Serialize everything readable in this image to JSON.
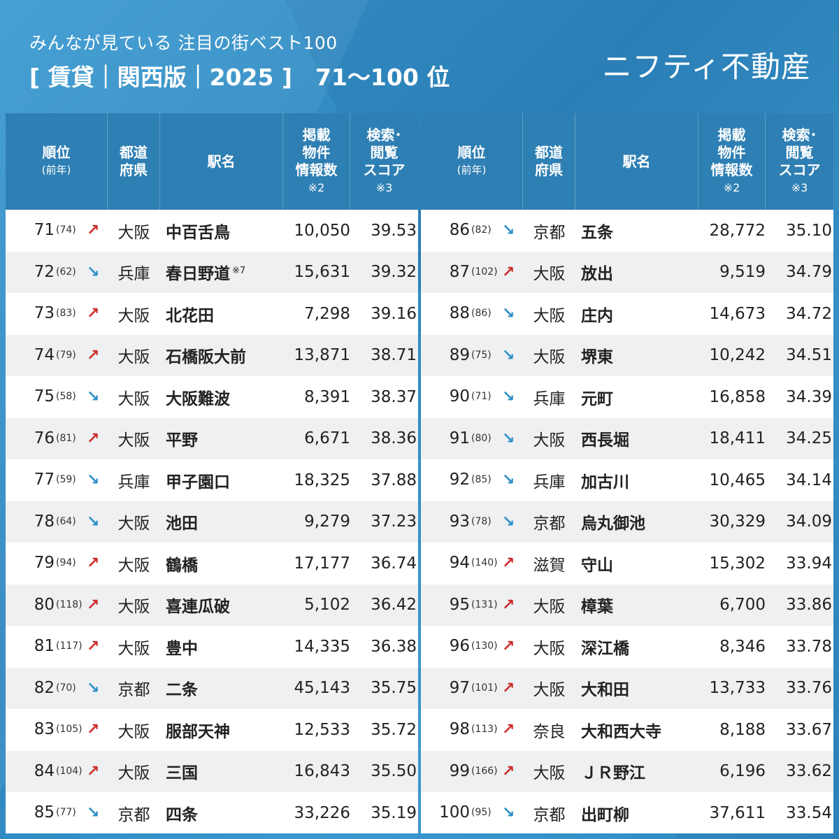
{
  "header": {
    "subtitle": "みんなが見ている 注目の街ベスト100",
    "title": "[ 賃貸｜関西版｜2025 ]　71〜100 位",
    "brand": "ニフティ不動産"
  },
  "columns": {
    "rank": "順位",
    "rank_prev": "(前年)",
    "pref_1": "都道",
    "pref_2": "府県",
    "name": "駅名",
    "count_1": "掲載",
    "count_2": "物件",
    "count_3": "情報数",
    "count_note": "※2",
    "score_1": "検索･",
    "score_2": "閲覧",
    "score_3": "スコア",
    "score_note": "※3"
  },
  "arrows": {
    "up": "↗",
    "down": "↘"
  },
  "colors": {
    "up": "#cc2b2b",
    "down": "#2a8fc7",
    "header": "#2e7fb3"
  },
  "left_rows": [
    {
      "rank": "71",
      "prev": "(74)",
      "trend": "up",
      "pref": "大阪",
      "name": "中百舌鳥",
      "note": "",
      "count": "10,050",
      "score": "39.53"
    },
    {
      "rank": "72",
      "prev": "(62)",
      "trend": "down",
      "pref": "兵庫",
      "name": "春日野道",
      "note": "※7",
      "count": "15,631",
      "score": "39.32"
    },
    {
      "rank": "73",
      "prev": "(83)",
      "trend": "up",
      "pref": "大阪",
      "name": "北花田",
      "note": "",
      "count": "7,298",
      "score": "39.16"
    },
    {
      "rank": "74",
      "prev": "(79)",
      "trend": "up",
      "pref": "大阪",
      "name": "石橋阪大前",
      "note": "",
      "count": "13,871",
      "score": "38.71"
    },
    {
      "rank": "75",
      "prev": "(58)",
      "trend": "down",
      "pref": "大阪",
      "name": "大阪難波",
      "note": "",
      "count": "8,391",
      "score": "38.37"
    },
    {
      "rank": "76",
      "prev": "(81)",
      "trend": "up",
      "pref": "大阪",
      "name": "平野",
      "note": "",
      "count": "6,671",
      "score": "38.36"
    },
    {
      "rank": "77",
      "prev": "(59)",
      "trend": "down",
      "pref": "兵庫",
      "name": "甲子園口",
      "note": "",
      "count": "18,325",
      "score": "37.88"
    },
    {
      "rank": "78",
      "prev": "(64)",
      "trend": "down",
      "pref": "大阪",
      "name": "池田",
      "note": "",
      "count": "9,279",
      "score": "37.23"
    },
    {
      "rank": "79",
      "prev": "(94)",
      "trend": "up",
      "pref": "大阪",
      "name": "鶴橋",
      "note": "",
      "count": "17,177",
      "score": "36.74"
    },
    {
      "rank": "80",
      "prev": "(118)",
      "trend": "up",
      "pref": "大阪",
      "name": "喜連瓜破",
      "note": "",
      "count": "5,102",
      "score": "36.42"
    },
    {
      "rank": "81",
      "prev": "(117)",
      "trend": "up",
      "pref": "大阪",
      "name": "豊中",
      "note": "",
      "count": "14,335",
      "score": "36.38"
    },
    {
      "rank": "82",
      "prev": "(70)",
      "trend": "down",
      "pref": "京都",
      "name": "二条",
      "note": "",
      "count": "45,143",
      "score": "35.75"
    },
    {
      "rank": "83",
      "prev": "(105)",
      "trend": "up",
      "pref": "大阪",
      "name": "服部天神",
      "note": "",
      "count": "12,533",
      "score": "35.72"
    },
    {
      "rank": "84",
      "prev": "(104)",
      "trend": "up",
      "pref": "大阪",
      "name": "三国",
      "note": "",
      "count": "16,843",
      "score": "35.50"
    },
    {
      "rank": "85",
      "prev": "(77)",
      "trend": "down",
      "pref": "京都",
      "name": "四条",
      "note": "",
      "count": "33,226",
      "score": "35.19"
    }
  ],
  "right_rows": [
    {
      "rank": "86",
      "prev": "(82)",
      "trend": "down",
      "pref": "京都",
      "name": "五条",
      "note": "",
      "count": "28,772",
      "score": "35.10"
    },
    {
      "rank": "87",
      "prev": "(102)",
      "trend": "up",
      "pref": "大阪",
      "name": "放出",
      "note": "",
      "count": "9,519",
      "score": "34.79"
    },
    {
      "rank": "88",
      "prev": "(86)",
      "trend": "down",
      "pref": "大阪",
      "name": "庄内",
      "note": "",
      "count": "14,673",
      "score": "34.72"
    },
    {
      "rank": "89",
      "prev": "(75)",
      "trend": "down",
      "pref": "大阪",
      "name": "堺東",
      "note": "",
      "count": "10,242",
      "score": "34.51"
    },
    {
      "rank": "90",
      "prev": "(71)",
      "trend": "down",
      "pref": "兵庫",
      "name": "元町",
      "note": "",
      "count": "16,858",
      "score": "34.39"
    },
    {
      "rank": "91",
      "prev": "(80)",
      "trend": "down",
      "pref": "大阪",
      "name": "西長堀",
      "note": "",
      "count": "18,411",
      "score": "34.25"
    },
    {
      "rank": "92",
      "prev": "(85)",
      "trend": "down",
      "pref": "兵庫",
      "name": "加古川",
      "note": "",
      "count": "10,465",
      "score": "34.14"
    },
    {
      "rank": "93",
      "prev": "(78)",
      "trend": "down",
      "pref": "京都",
      "name": "烏丸御池",
      "note": "",
      "count": "30,329",
      "score": "34.09"
    },
    {
      "rank": "94",
      "prev": "(140)",
      "trend": "up",
      "pref": "滋賀",
      "name": "守山",
      "note": "",
      "count": "15,302",
      "score": "33.94"
    },
    {
      "rank": "95",
      "prev": "(131)",
      "trend": "up",
      "pref": "大阪",
      "name": "樟葉",
      "note": "",
      "count": "6,700",
      "score": "33.86"
    },
    {
      "rank": "96",
      "prev": "(130)",
      "trend": "up",
      "pref": "大阪",
      "name": "深江橋",
      "note": "",
      "count": "8,346",
      "score": "33.78"
    },
    {
      "rank": "97",
      "prev": "(101)",
      "trend": "up",
      "pref": "大阪",
      "name": "大和田",
      "note": "",
      "count": "13,733",
      "score": "33.76"
    },
    {
      "rank": "98",
      "prev": "(113)",
      "trend": "up",
      "pref": "奈良",
      "name": "大和西大寺",
      "note": "",
      "count": "8,188",
      "score": "33.67"
    },
    {
      "rank": "99",
      "prev": "(166)",
      "trend": "up",
      "pref": "大阪",
      "name": "ＪＲ野江",
      "note": "",
      "count": "6,196",
      "score": "33.62"
    },
    {
      "rank": "100",
      "prev": "(95)",
      "trend": "down",
      "pref": "京都",
      "name": "出町柳",
      "note": "",
      "count": "37,611",
      "score": "33.54"
    }
  ]
}
